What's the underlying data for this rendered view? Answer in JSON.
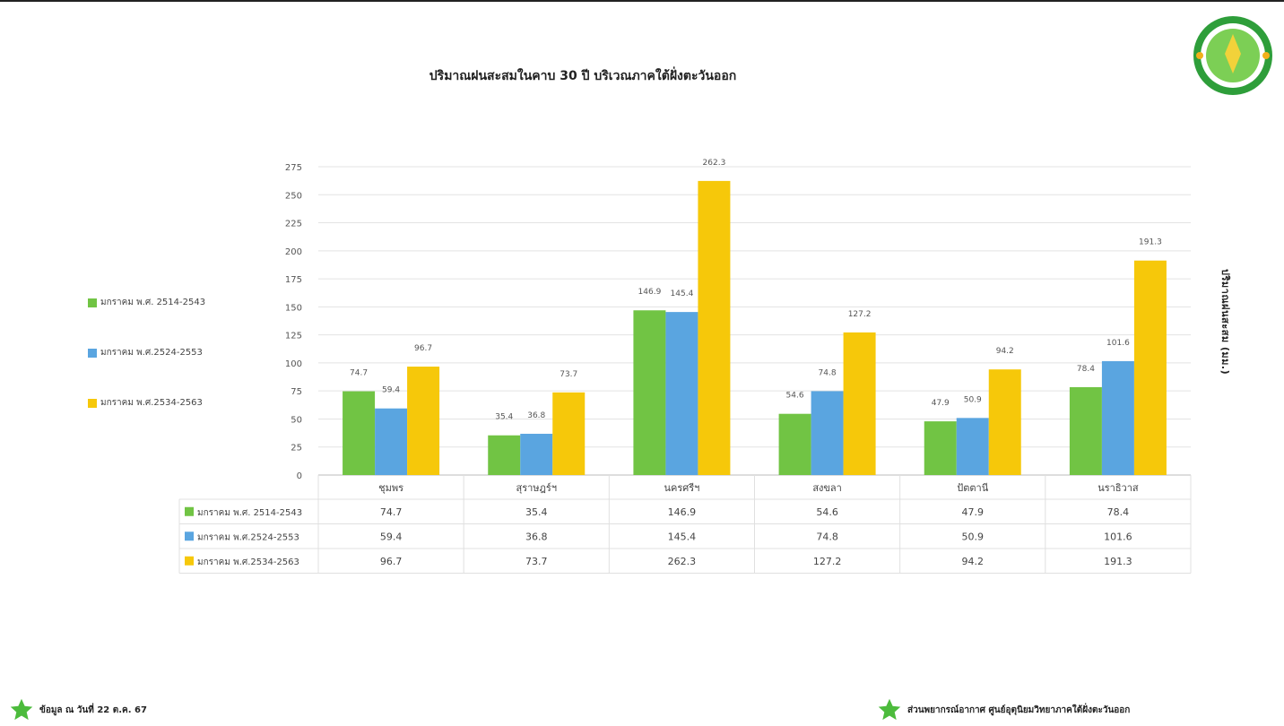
{
  "page": {
    "title": "ปริมาณฝนสะสมในคาบ 30 ปี บริเวณภาคใต้ฝั่งตะวันออก",
    "y_axis_label": "ปริมาณฝนสะสม (มม.)",
    "footer_left": "ข้อมูล ณ วันที่ 22 ต.ค. 67",
    "footer_right": "ส่วนพยากรณ์อากาศ ศูนย์อุตุนิยมวิทยาภาคใต้ฝั่งตะวันออก",
    "icons": {
      "logo": "department-seal-icon",
      "footer_left": "green-star-icon",
      "footer_right": "green-star-icon"
    }
  },
  "chart_data": {
    "type": "bar",
    "title": "ปริมาณฝนสะสมในคาบ 30 ปี บริเวณภาคใต้ฝั่งตะวันออก",
    "ylabel": "ปริมาณฝนสะสม (มม.)",
    "ylim": [
      0,
      275
    ],
    "yticks": [
      0,
      25,
      50,
      75,
      100,
      125,
      150,
      175,
      200,
      225,
      250,
      275
    ],
    "grid": true,
    "legend_placement": "left",
    "categories": [
      "ชุมพร",
      "สุราษฎร์ฯ",
      "นครศรีฯ",
      "สงขลา",
      "ปัตตานี",
      "นราธิวาส"
    ],
    "series": [
      {
        "name": "มกราคม พ.ศ. 2514-2543",
        "color": "#71c444",
        "values": [
          74.7,
          35.4,
          146.9,
          54.6,
          47.9,
          78.4
        ]
      },
      {
        "name": "มกราคม พ.ศ.2524-2553",
        "color": "#5aa5e0",
        "values": [
          59.4,
          36.8,
          145.4,
          74.8,
          50.9,
          101.6
        ]
      },
      {
        "name": "มกราคม พ.ศ.2534-2563",
        "color": "#f6c80a",
        "values": [
          96.7,
          73.7,
          262.3,
          127.2,
          94.2,
          191.3
        ]
      }
    ],
    "table_values": [
      [
        "74.7",
        "35.4",
        "146.9",
        "54.6",
        "47.9",
        "78.4"
      ],
      [
        "59.4",
        "36.8",
        "145.4",
        "74.8",
        "50.9",
        "101.6"
      ],
      [
        "96.7",
        "73.7",
        "262.3",
        "127.2",
        "94.2",
        "191.3"
      ]
    ]
  }
}
